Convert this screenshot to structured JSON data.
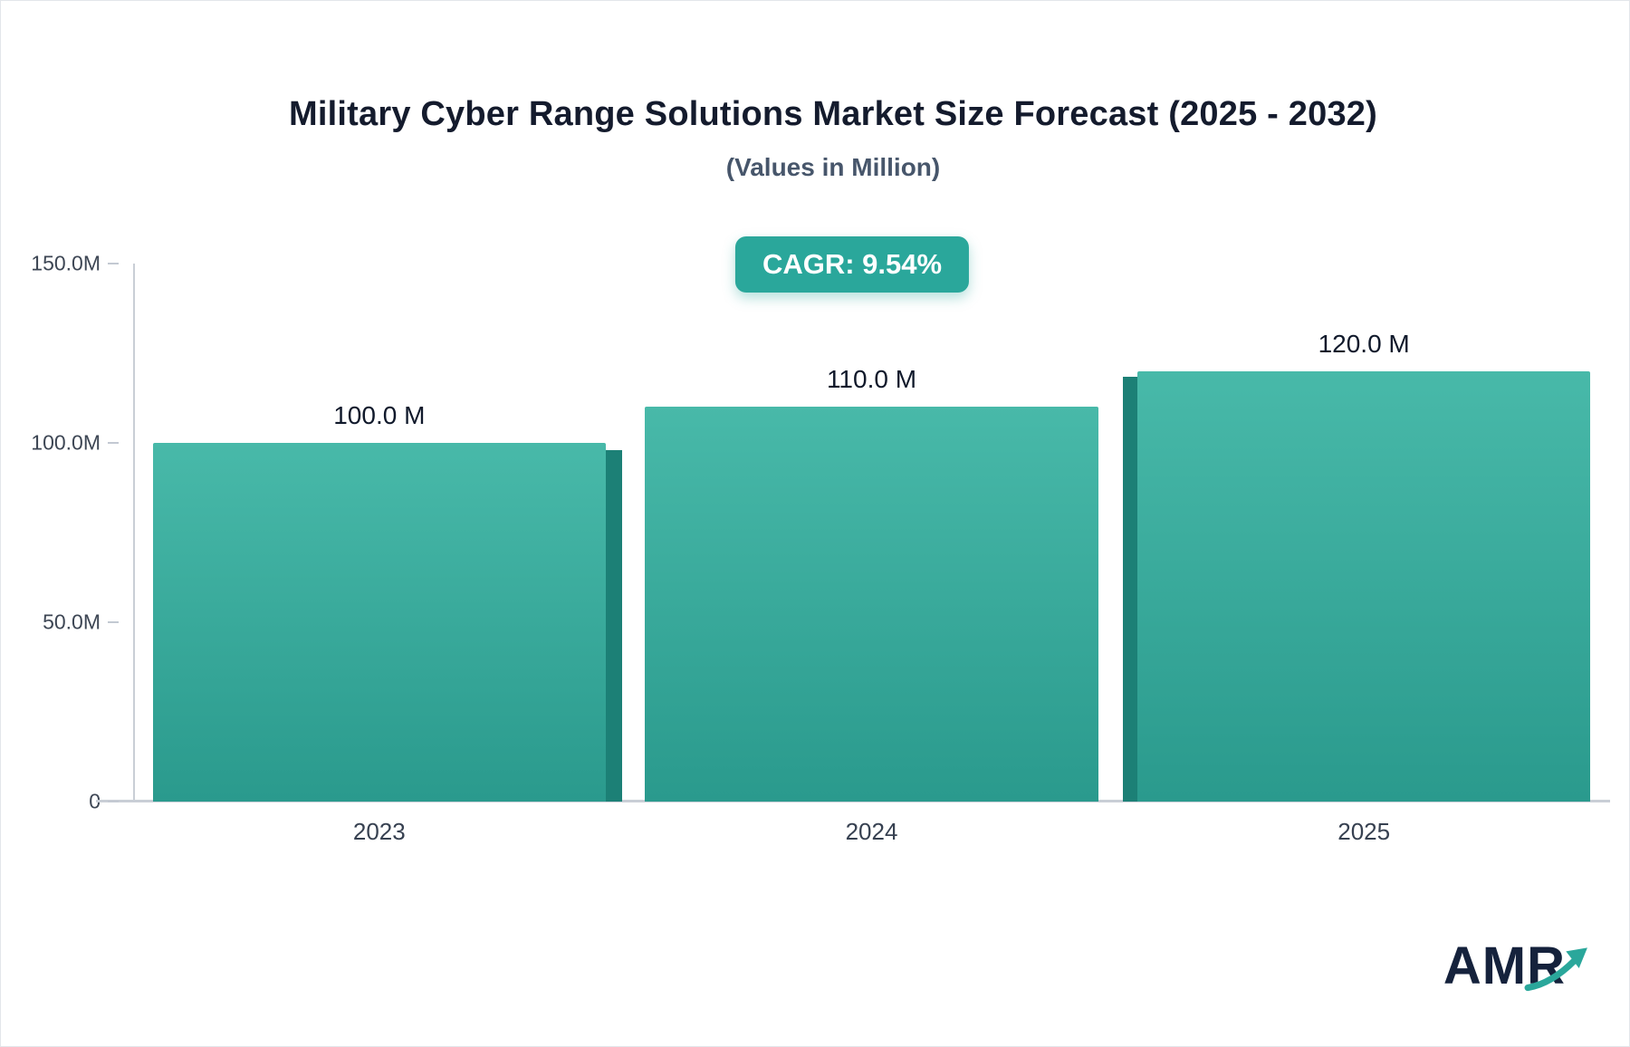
{
  "page": {
    "title": "Military Cyber Range Solutions Market Size Forecast (2025 - 2032)",
    "subtitle": "(Values in Million)",
    "cagr_label": "CAGR: 9.54%",
    "brand": "AMR"
  },
  "colors": {
    "bar_top": "#48b9a9",
    "bar_bottom": "#2a9a8d",
    "bar_side": "#1c8076",
    "badge_bg": "#2aa79b",
    "brand_navy": "#15223c",
    "brand_teal": "#2aa79b"
  },
  "chart_data": {
    "type": "bar",
    "title": "Military Cyber Range Solutions Market Size Forecast (2025 - 2032)",
    "subtitle": "(Values in Million)",
    "unit": "Million",
    "categories": [
      "2023",
      "2024",
      "2025"
    ],
    "values": [
      100.0,
      110.0,
      120.0
    ],
    "value_labels": [
      "100.0 M",
      "110.0 M",
      "120.0 M"
    ],
    "cagr_percent": 9.54,
    "xlabel": "",
    "ylabel": "",
    "ylim": [
      0,
      150
    ],
    "yticks": [
      150,
      100,
      50,
      0
    ],
    "ytick_labels": [
      "150.0M",
      "100.0M",
      "50.0M",
      "0"
    ],
    "grid": false,
    "legend": false,
    "bar_color_gradient": [
      "#48b9a9",
      "#2a9a8d"
    ]
  }
}
